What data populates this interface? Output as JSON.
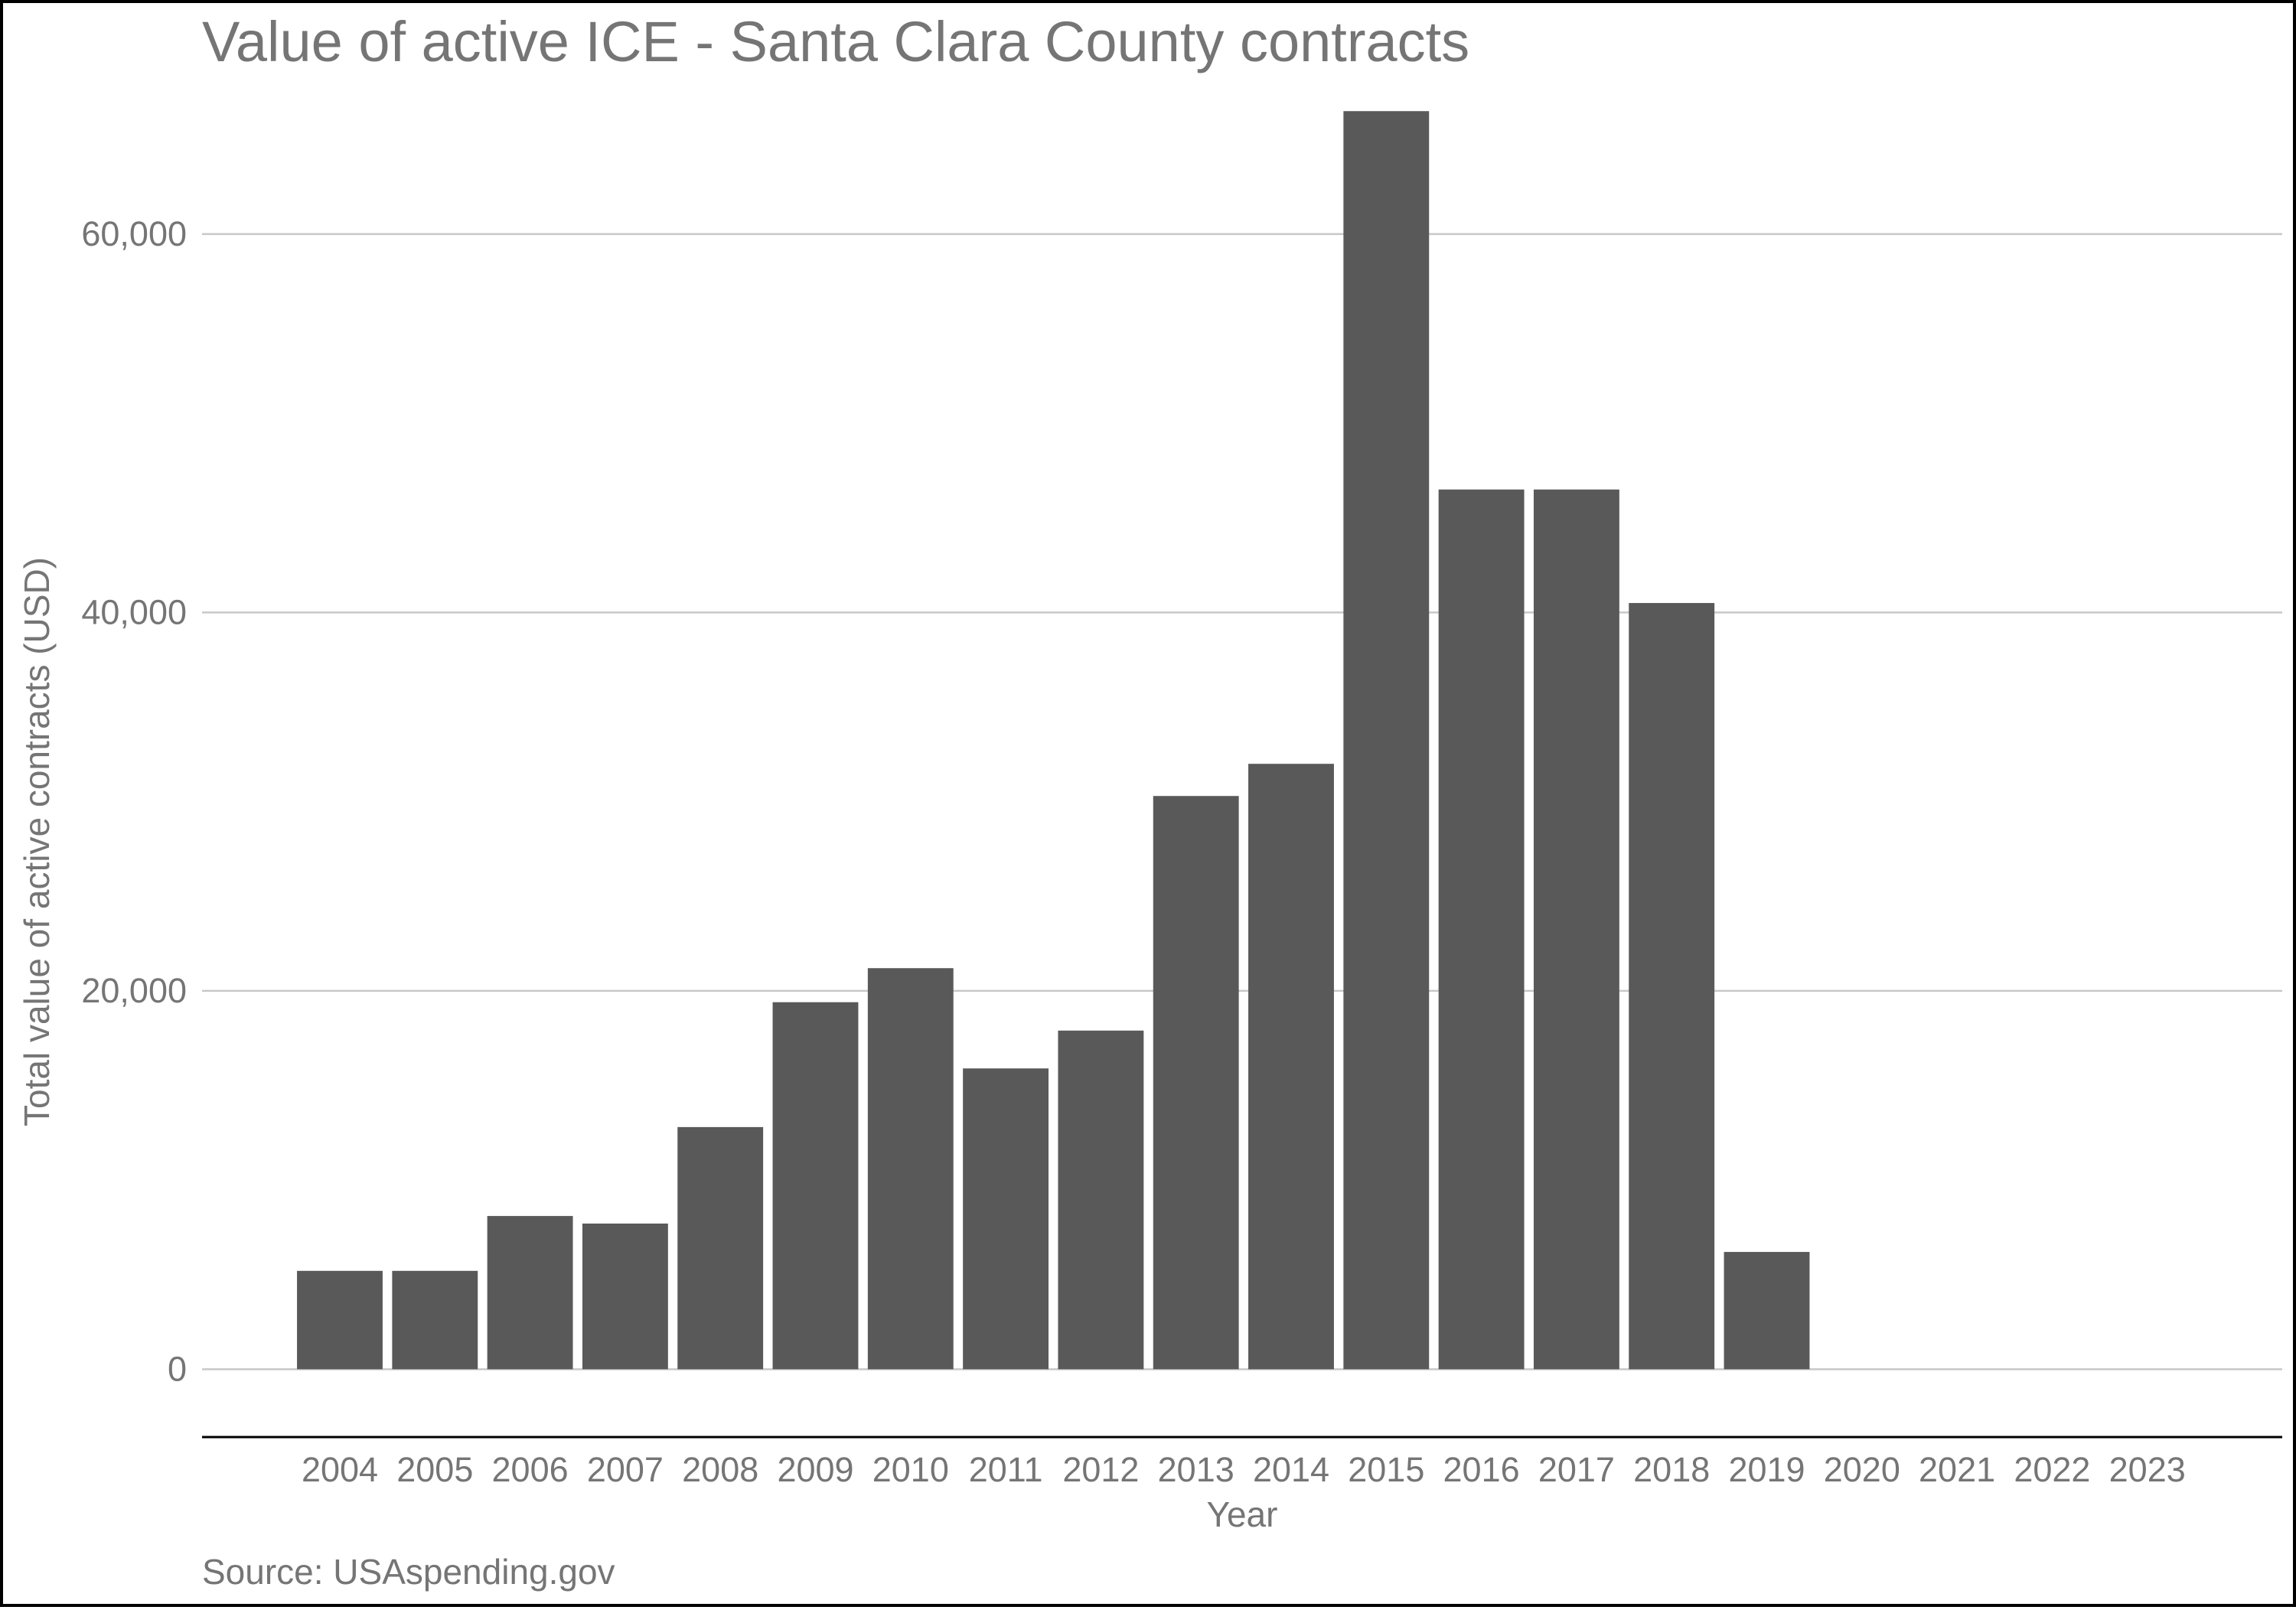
{
  "chart_data": {
    "type": "bar",
    "title": "Value of active ICE - Santa Clara County contracts",
    "xlabel": "Year",
    "ylabel": "Total value of active contracts (USD)",
    "caption": "Source: USAspending.gov",
    "categories": [
      "2004",
      "2005",
      "2006",
      "2007",
      "2008",
      "2009",
      "2010",
      "2011",
      "2012",
      "2013",
      "2014",
      "2015",
      "2016",
      "2017",
      "2018",
      "2019",
      "2020",
      "2021",
      "2022",
      "2023"
    ],
    "values": [
      5200,
      5200,
      8100,
      7700,
      12800,
      19400,
      21200,
      15900,
      17900,
      30300,
      32000,
      66500,
      46500,
      46500,
      40500,
      6200,
      0,
      0,
      0,
      0
    ],
    "ylim": [
      -3100,
      69300
    ],
    "yticks": [
      0,
      20000,
      40000,
      60000
    ],
    "ytick_labels": [
      "0",
      "20,000",
      "40,000",
      "60,000"
    ],
    "grid": "horizontal major",
    "legend": "none",
    "colors": {
      "bar": "#595959",
      "grid": "#c8c8c8",
      "text": "#757575",
      "axis_line": "#000000",
      "frame": "#000000"
    }
  }
}
